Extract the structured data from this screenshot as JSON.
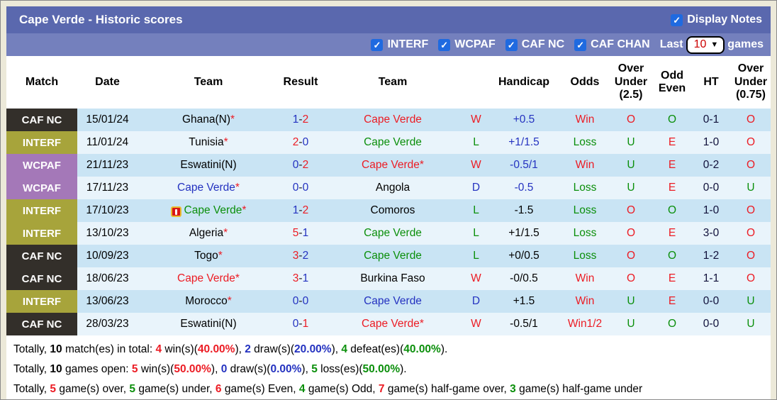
{
  "colors": {
    "red": "#ec1c24",
    "green": "#0b8f0b",
    "blue": "#2432c0",
    "black": "#000000",
    "dark": "#10103a",
    "badge_cafnc": "#332f2a",
    "badge_interf": "#a7a43b",
    "badge_wcpaf": "#a478b8",
    "titlebar_bg": "#5a68ae",
    "filterbar_bg": "#7480bd",
    "row_odd_bg": "#c9e4f4",
    "row_even_bg": "#e9f4fb",
    "checkbox_blue": "#1f6ae0"
  },
  "title_bar": {
    "title": "Cape Verde - Historic scores",
    "display_notes_label": "Display Notes",
    "display_notes_checked": true
  },
  "filter_bar": {
    "competitions": [
      {
        "label": "INTERF",
        "checked": true
      },
      {
        "label": "WCPAF",
        "checked": true
      },
      {
        "label": "CAF NC",
        "checked": true
      },
      {
        "label": "CAF CHAN",
        "checked": true
      }
    ],
    "last_label": "Last",
    "last_value": "10",
    "games_label": "games"
  },
  "table": {
    "headers": [
      "Match",
      "Date",
      "Team",
      "Result",
      "Team",
      "",
      "Handicap",
      "Odds",
      "Over Under (2.5)",
      "Odd Even",
      "HT",
      "Over Under (0.75)"
    ],
    "rows": [
      {
        "badge": "CAF NC",
        "badge_color": "badge_cafnc",
        "date": "15/01/24",
        "team1": {
          "name": "Ghana(N)",
          "color": "black",
          "asterisk": true,
          "icon": false
        },
        "result": {
          "home": "1",
          "home_color": "blue",
          "away": "2",
          "away_color": "red"
        },
        "team2": {
          "name": "Cape Verde",
          "color": "red",
          "asterisk": false
        },
        "wld": {
          "text": "W",
          "color": "red"
        },
        "handicap": {
          "text": "+0.5",
          "color": "blue"
        },
        "odds": {
          "text": "Win",
          "color": "red"
        },
        "ou25": {
          "text": "O",
          "color": "red"
        },
        "oddeven": {
          "text": "O",
          "color": "green"
        },
        "ht": "0-1",
        "ou075": {
          "text": "O",
          "color": "red"
        }
      },
      {
        "badge": "INTERF",
        "badge_color": "badge_interf",
        "date": "11/01/24",
        "team1": {
          "name": "Tunisia",
          "color": "black",
          "asterisk": true,
          "icon": false
        },
        "result": {
          "home": "2",
          "home_color": "red",
          "away": "0",
          "away_color": "blue"
        },
        "team2": {
          "name": "Cape Verde",
          "color": "green",
          "asterisk": false
        },
        "wld": {
          "text": "L",
          "color": "green"
        },
        "handicap": {
          "text": "+1/1.5",
          "color": "blue"
        },
        "odds": {
          "text": "Loss",
          "color": "green"
        },
        "ou25": {
          "text": "U",
          "color": "green"
        },
        "oddeven": {
          "text": "E",
          "color": "red"
        },
        "ht": "1-0",
        "ou075": {
          "text": "O",
          "color": "red"
        }
      },
      {
        "badge": "WCPAF",
        "badge_color": "badge_wcpaf",
        "date": "21/11/23",
        "team1": {
          "name": "Eswatini(N)",
          "color": "black",
          "asterisk": false,
          "icon": false
        },
        "result": {
          "home": "0",
          "home_color": "blue",
          "away": "2",
          "away_color": "red"
        },
        "team2": {
          "name": "Cape Verde",
          "color": "red",
          "asterisk": true
        },
        "wld": {
          "text": "W",
          "color": "red"
        },
        "handicap": {
          "text": "-0.5/1",
          "color": "blue"
        },
        "odds": {
          "text": "Win",
          "color": "red"
        },
        "ou25": {
          "text": "U",
          "color": "green"
        },
        "oddeven": {
          "text": "E",
          "color": "red"
        },
        "ht": "0-2",
        "ou075": {
          "text": "O",
          "color": "red"
        }
      },
      {
        "badge": "WCPAF",
        "badge_color": "badge_wcpaf",
        "date": "17/11/23",
        "team1": {
          "name": "Cape Verde",
          "color": "blue",
          "asterisk": true,
          "icon": false
        },
        "result": {
          "home": "0",
          "home_color": "blue",
          "away": "0",
          "away_color": "blue"
        },
        "team2": {
          "name": "Angola",
          "color": "black",
          "asterisk": false
        },
        "wld": {
          "text": "D",
          "color": "blue"
        },
        "handicap": {
          "text": "-0.5",
          "color": "blue"
        },
        "odds": {
          "text": "Loss",
          "color": "green"
        },
        "ou25": {
          "text": "U",
          "color": "green"
        },
        "oddeven": {
          "text": "E",
          "color": "red"
        },
        "ht": "0-0",
        "ou075": {
          "text": "U",
          "color": "green"
        }
      },
      {
        "badge": "INTERF",
        "badge_color": "badge_interf",
        "date": "17/10/23",
        "team1": {
          "name": "Cape Verde",
          "color": "green",
          "asterisk": true,
          "icon": true
        },
        "result": {
          "home": "1",
          "home_color": "blue",
          "away": "2",
          "away_color": "red"
        },
        "team2": {
          "name": "Comoros",
          "color": "black",
          "asterisk": false
        },
        "wld": {
          "text": "L",
          "color": "green"
        },
        "handicap": {
          "text": "-1.5",
          "color": "black"
        },
        "odds": {
          "text": "Loss",
          "color": "green"
        },
        "ou25": {
          "text": "O",
          "color": "red"
        },
        "oddeven": {
          "text": "O",
          "color": "green"
        },
        "ht": "1-0",
        "ou075": {
          "text": "O",
          "color": "red"
        }
      },
      {
        "badge": "INTERF",
        "badge_color": "badge_interf",
        "date": "13/10/23",
        "team1": {
          "name": "Algeria",
          "color": "black",
          "asterisk": true,
          "icon": false
        },
        "result": {
          "home": "5",
          "home_color": "red",
          "away": "1",
          "away_color": "blue"
        },
        "team2": {
          "name": "Cape Verde",
          "color": "green",
          "asterisk": false
        },
        "wld": {
          "text": "L",
          "color": "green"
        },
        "handicap": {
          "text": "+1/1.5",
          "color": "black"
        },
        "odds": {
          "text": "Loss",
          "color": "green"
        },
        "ou25": {
          "text": "O",
          "color": "red"
        },
        "oddeven": {
          "text": "E",
          "color": "red"
        },
        "ht": "3-0",
        "ou075": {
          "text": "O",
          "color": "red"
        }
      },
      {
        "badge": "CAF NC",
        "badge_color": "badge_cafnc",
        "date": "10/09/23",
        "team1": {
          "name": "Togo",
          "color": "black",
          "asterisk": true,
          "icon": false
        },
        "result": {
          "home": "3",
          "home_color": "red",
          "away": "2",
          "away_color": "blue"
        },
        "team2": {
          "name": "Cape Verde",
          "color": "green",
          "asterisk": false
        },
        "wld": {
          "text": "L",
          "color": "green"
        },
        "handicap": {
          "text": "+0/0.5",
          "color": "black"
        },
        "odds": {
          "text": "Loss",
          "color": "green"
        },
        "ou25": {
          "text": "O",
          "color": "red"
        },
        "oddeven": {
          "text": "O",
          "color": "green"
        },
        "ht": "1-2",
        "ou075": {
          "text": "O",
          "color": "red"
        }
      },
      {
        "badge": "CAF NC",
        "badge_color": "badge_cafnc",
        "date": "18/06/23",
        "team1": {
          "name": "Cape Verde",
          "color": "red",
          "asterisk": true,
          "icon": false
        },
        "result": {
          "home": "3",
          "home_color": "red",
          "away": "1",
          "away_color": "blue"
        },
        "team2": {
          "name": "Burkina Faso",
          "color": "black",
          "asterisk": false
        },
        "wld": {
          "text": "W",
          "color": "red"
        },
        "handicap": {
          "text": "-0/0.5",
          "color": "black"
        },
        "odds": {
          "text": "Win",
          "color": "red"
        },
        "ou25": {
          "text": "O",
          "color": "red"
        },
        "oddeven": {
          "text": "E",
          "color": "red"
        },
        "ht": "1-1",
        "ou075": {
          "text": "O",
          "color": "red"
        }
      },
      {
        "badge": "INTERF",
        "badge_color": "badge_interf",
        "date": "13/06/23",
        "team1": {
          "name": "Morocco",
          "color": "black",
          "asterisk": true,
          "icon": false
        },
        "result": {
          "home": "0",
          "home_color": "blue",
          "away": "0",
          "away_color": "blue"
        },
        "team2": {
          "name": "Cape Verde",
          "color": "blue",
          "asterisk": false
        },
        "wld": {
          "text": "D",
          "color": "blue"
        },
        "handicap": {
          "text": "+1.5",
          "color": "black"
        },
        "odds": {
          "text": "Win",
          "color": "red"
        },
        "ou25": {
          "text": "U",
          "color": "green"
        },
        "oddeven": {
          "text": "E",
          "color": "red"
        },
        "ht": "0-0",
        "ou075": {
          "text": "U",
          "color": "green"
        }
      },
      {
        "badge": "CAF NC",
        "badge_color": "badge_cafnc",
        "date": "28/03/23",
        "team1": {
          "name": "Eswatini(N)",
          "color": "black",
          "asterisk": false,
          "icon": false
        },
        "result": {
          "home": "0",
          "home_color": "blue",
          "away": "1",
          "away_color": "red"
        },
        "team2": {
          "name": "Cape Verde",
          "color": "red",
          "asterisk": true
        },
        "wld": {
          "text": "W",
          "color": "red"
        },
        "handicap": {
          "text": "-0.5/1",
          "color": "black"
        },
        "odds": {
          "text": "Win1/2",
          "color": "red"
        },
        "ou25": {
          "text": "U",
          "color": "green"
        },
        "oddeven": {
          "text": "O",
          "color": "green"
        },
        "ht": "0-0",
        "ou075": {
          "text": "U",
          "color": "green"
        }
      }
    ]
  },
  "summary": {
    "lines": [
      [
        {
          "t": "Totally, ",
          "c": "black"
        },
        {
          "t": "10",
          "c": "black",
          "b": true
        },
        {
          "t": " match(es) in total: ",
          "c": "black"
        },
        {
          "t": "4",
          "c": "red",
          "b": true
        },
        {
          "t": " win(s)(",
          "c": "black"
        },
        {
          "t": "40.00%",
          "c": "red",
          "b": true
        },
        {
          "t": "), ",
          "c": "black"
        },
        {
          "t": "2",
          "c": "blue",
          "b": true
        },
        {
          "t": " draw(s)(",
          "c": "black"
        },
        {
          "t": "20.00%",
          "c": "blue",
          "b": true
        },
        {
          "t": "), ",
          "c": "black"
        },
        {
          "t": "4",
          "c": "green",
          "b": true
        },
        {
          "t": " defeat(es)(",
          "c": "black"
        },
        {
          "t": "40.00%",
          "c": "green",
          "b": true
        },
        {
          "t": ").",
          "c": "black"
        }
      ],
      [
        {
          "t": "Totally, ",
          "c": "black"
        },
        {
          "t": "10",
          "c": "black",
          "b": true
        },
        {
          "t": " games open: ",
          "c": "black"
        },
        {
          "t": "5",
          "c": "red",
          "b": true
        },
        {
          "t": " win(s)(",
          "c": "black"
        },
        {
          "t": "50.00%",
          "c": "red",
          "b": true
        },
        {
          "t": "), ",
          "c": "black"
        },
        {
          "t": "0",
          "c": "blue",
          "b": true
        },
        {
          "t": " draw(s)(",
          "c": "black"
        },
        {
          "t": "0.00%",
          "c": "blue",
          "b": true
        },
        {
          "t": "), ",
          "c": "black"
        },
        {
          "t": "5",
          "c": "green",
          "b": true
        },
        {
          "t": " loss(es)(",
          "c": "black"
        },
        {
          "t": "50.00%",
          "c": "green",
          "b": true
        },
        {
          "t": ").",
          "c": "black"
        }
      ],
      [
        {
          "t": "Totally, ",
          "c": "black"
        },
        {
          "t": "5",
          "c": "red",
          "b": true
        },
        {
          "t": " game(s) over, ",
          "c": "black"
        },
        {
          "t": "5",
          "c": "green",
          "b": true
        },
        {
          "t": " game(s) under, ",
          "c": "black"
        },
        {
          "t": "6",
          "c": "red",
          "b": true
        },
        {
          "t": " game(s) Even, ",
          "c": "black"
        },
        {
          "t": "4",
          "c": "green",
          "b": true
        },
        {
          "t": " game(s) Odd, ",
          "c": "black"
        },
        {
          "t": "7",
          "c": "red",
          "b": true
        },
        {
          "t": " game(s) half-game over, ",
          "c": "black"
        },
        {
          "t": "3",
          "c": "green",
          "b": true
        },
        {
          "t": " game(s) half-game under",
          "c": "black"
        }
      ]
    ]
  }
}
